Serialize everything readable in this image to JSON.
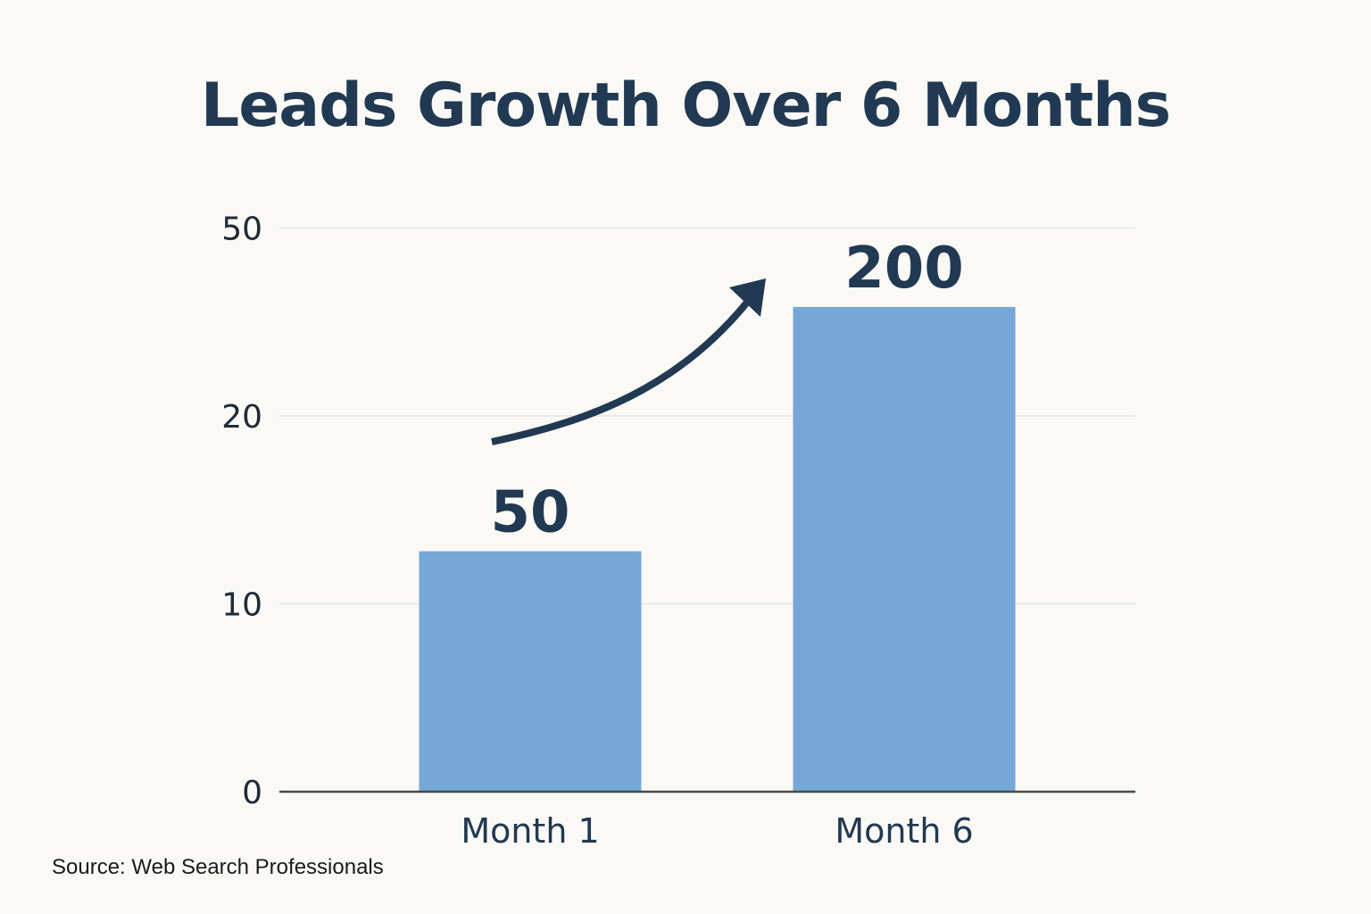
{
  "chart_data": {
    "type": "bar",
    "title": "Leads Growth Over 6 Months",
    "categories": [
      "Month 1",
      "Month 6"
    ],
    "values": [
      50,
      200
    ],
    "data_labels": [
      "50",
      "200"
    ],
    "y_ticks": [
      "0",
      "10",
      "20",
      "50"
    ],
    "xlabel": "",
    "ylabel": "",
    "grid": true,
    "annotation": "upward-growth-arrow",
    "colors": {
      "bar": "#76a7d7",
      "text": "#213952",
      "grid": "#e4e4e2",
      "axis": "#4a4a4a"
    }
  },
  "source": "Source: Web Search Professionals"
}
